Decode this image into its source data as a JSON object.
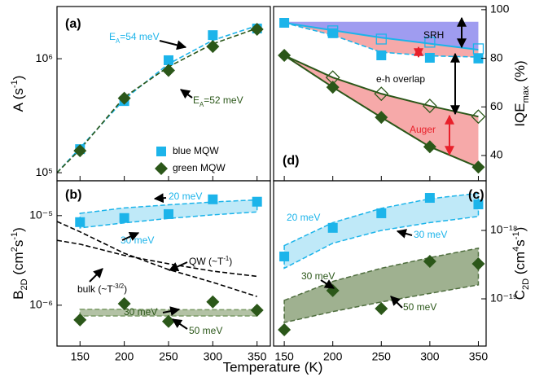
{
  "chart_data": [
    {
      "type": "scatter",
      "label": "(a)",
      "yaxis": "left",
      "yscale": "log",
      "ylabel": [
        {
          "text": "A (s"
        },
        {
          "text": "-1",
          "shift": "super"
        },
        {
          "text": ")"
        }
      ],
      "xlim": [
        124,
        365
      ],
      "ylim": [
        85000,
        2870000
      ],
      "xticks": [
        150,
        200,
        250,
        300,
        350
      ],
      "xtick_labels": false,
      "yticks": [
        {
          "value": 100000,
          "label": "10⁵"
        },
        {
          "value": 1000000,
          "label": "10⁶"
        }
      ],
      "x": [
        150,
        200,
        250,
        300,
        350
      ],
      "series": [
        {
          "name": "blue MQW",
          "color": "#1cb4ea",
          "marker": "square",
          "filled": true,
          "values": [
            161000,
            425000,
            970000,
            1610000,
            1840000
          ]
        },
        {
          "name": "green MQW",
          "color": "#2b5719",
          "marker": "diamond",
          "filled": true,
          "values": [
            156000,
            450000,
            790000,
            1280000,
            1810000
          ]
        }
      ],
      "fits": [
        {
          "color": "#1cb4ea",
          "style": "dashed",
          "x": [
            124,
            150,
            200,
            250,
            300,
            350
          ],
          "values": [
            100000,
            165000,
            440000,
            900000,
            1450000,
            1950000
          ]
        },
        {
          "color": "#2b5719",
          "style": "dashed",
          "x": [
            124,
            150,
            200,
            250,
            300,
            350
          ],
          "values": [
            100000,
            160000,
            460000,
            850000,
            1350000,
            1850000
          ]
        }
      ],
      "annotations": [
        {
          "color": "#1cb4ea",
          "parts": [
            {
              "text": "E"
            },
            {
              "text": "A",
              "shift": "sub"
            },
            {
              "text": "=54 meV"
            }
          ]
        },
        {
          "color": "#2b5719",
          "parts": [
            {
              "text": "E"
            },
            {
              "text": "A",
              "shift": "sub"
            },
            {
              "text": "=52 meV"
            }
          ]
        }
      ],
      "legend": "lower right"
    },
    {
      "type": "scatter",
      "label": "(b)",
      "yaxis": "left",
      "yscale": "log",
      "ylabel": [
        {
          "text": "B"
        },
        {
          "text": "2D",
          "shift": "sub"
        },
        {
          "text": " (cm"
        },
        {
          "text": "2",
          "shift": "super"
        },
        {
          "text": "s"
        },
        {
          "text": "-1",
          "shift": "super"
        },
        {
          "text": ")"
        }
      ],
      "xlim": [
        124,
        365
      ],
      "ylim": [
        3.5e-07,
        2.45e-05
      ],
      "xticks": [
        150,
        200,
        250,
        300,
        350
      ],
      "yticks": [
        {
          "value": 1e-06,
          "label": "10⁻⁶"
        },
        {
          "value": 1e-05,
          "label": "10⁻⁵"
        }
      ],
      "x": [
        150,
        200,
        250,
        300,
        350
      ],
      "bands": [
        {
          "color": "#bfe9f8",
          "edge": "#1cb4ea",
          "upper": [
            1.06e-05,
            1.22e-05,
            1.32e-05,
            1.42e-05,
            1.5e-05
          ],
          "lower": [
            7.3e-06,
            8.3e-06,
            9.3e-06,
            1.02e-05,
            1.1e-05
          ]
        },
        {
          "color": "#b3c2a5",
          "edge": "#7a9a66",
          "upper": [
            9e-07,
            9e-07,
            8.9e-07,
            8.9e-07,
            8.9e-07
          ],
          "lower": [
            7.6e-07,
            7.6e-07,
            7.6e-07,
            7.6e-07,
            7.6e-07
          ]
        }
      ],
      "fits": [
        {
          "color": "#000000",
          "style": "dashed",
          "x": [
            124,
            150,
            200,
            250,
            300,
            350
          ],
          "values": [
            5.3e-06,
            4.8e-06,
            3.6e-06,
            2.9e-06,
            2.4e-06,
            2.1e-06
          ]
        },
        {
          "color": "#000000",
          "style": "dashed",
          "x": [
            124,
            150,
            200,
            250,
            300,
            350
          ],
          "values": [
            8.6e-06,
            6.6e-06,
            3.8e-06,
            2.5e-06,
            1.8e-06,
            1.25e-06
          ]
        }
      ],
      "series": [
        {
          "color": "#1cb4ea",
          "marker": "square",
          "filled": true,
          "values": [
            8.46e-06,
            9.4e-06,
            1.04e-05,
            1.52e-05,
            1.43e-05
          ]
        },
        {
          "color": "#2b5719",
          "marker": "diamond",
          "filled": true,
          "values": [
            6.86e-07,
            1.04e-06,
            6.6e-07,
            1.09e-06,
            8.8e-07
          ]
        }
      ],
      "annotations": [
        {
          "color": "#1cb4ea",
          "parts": [
            {
              "text": "20 meV"
            }
          ]
        },
        {
          "color": "#1cb4ea",
          "parts": [
            {
              "text": "30 meV"
            }
          ]
        },
        {
          "color": "#000000",
          "parts": [
            {
              "text": "QW (~T"
            },
            {
              "text": "-1",
              "shift": "super"
            },
            {
              "text": ")"
            }
          ]
        },
        {
          "color": "#000000",
          "parts": [
            {
              "text": "bulk (~T"
            },
            {
              "text": "-3/2",
              "shift": "super"
            },
            {
              "text": ")"
            }
          ]
        },
        {
          "color": "#2b5719",
          "parts": [
            {
              "text": "30 meV"
            }
          ]
        },
        {
          "color": "#2b5719",
          "parts": [
            {
              "text": "50 meV"
            }
          ]
        }
      ]
    },
    {
      "type": "scatter",
      "label": "(c)",
      "yaxis": "right",
      "yscale": "log",
      "ylabel": [
        {
          "text": "C"
        },
        {
          "text": "2D",
          "shift": "sub"
        },
        {
          "text": " (cm"
        },
        {
          "text": "4",
          "shift": "super"
        },
        {
          "text": "s"
        },
        {
          "text": "-1",
          "shift": "super"
        },
        {
          "text": ")"
        }
      ],
      "xlim": [
        139,
        358
      ],
      "ylim": [
        2.04e-20,
        5.32e-18
      ],
      "xticks": [
        150,
        200,
        250,
        300,
        350
      ],
      "yticks": [
        {
          "value": 1e-19,
          "label": "10⁻¹⁹"
        },
        {
          "value": 1e-18,
          "label": "10⁻¹⁸"
        }
      ],
      "x": [
        150,
        200,
        250,
        300,
        350
      ],
      "bands": [
        {
          "color": "#bfe9f8",
          "edge": "#1cb4ea",
          "upper": [
            6e-19,
            1.3e-18,
            2.1e-18,
            2.9e-18,
            3.5e-18
          ],
          "lower": [
            2.8e-19,
            6.5e-19,
            1e-18,
            1.3e-18,
            1.6e-18
          ]
        },
        {
          "color": "#9fb190",
          "edge": "#4f6e3e",
          "upper": [
            9.5e-20,
            1.8e-19,
            2.8e-19,
            4e-19,
            5.5e-19
          ],
          "lower": [
            4.5e-20,
            6.5e-20,
            9e-20,
            1.2e-19,
            1.6e-19
          ]
        }
      ],
      "series": [
        {
          "color": "#1cb4ea",
          "marker": "square",
          "filled": true,
          "values": [
            4.16e-19,
            1.09e-18,
            1.78e-18,
            2.99e-18,
            2.4e-18
          ]
        },
        {
          "color": "#2b5719",
          "marker": "diamond",
          "filled": true,
          "values": [
            3.53e-20,
            1.32e-19,
            7.2e-20,
            3.53e-19,
            3.25e-19
          ]
        }
      ],
      "annotations": [
        {
          "color": "#1cb4ea",
          "parts": [
            {
              "text": "20 meV"
            }
          ]
        },
        {
          "color": "#1cb4ea",
          "parts": [
            {
              "text": "30 meV"
            }
          ]
        },
        {
          "color": "#2b5719",
          "parts": [
            {
              "text": "30 meV"
            }
          ]
        },
        {
          "color": "#2b5719",
          "parts": [
            {
              "text": "50 meV"
            }
          ]
        }
      ]
    },
    {
      "type": "scatter",
      "label": "(d)",
      "yaxis": "right",
      "yscale": "linear",
      "ylabel": [
        {
          "text": "IQE"
        },
        {
          "text": "max",
          "shift": "sub"
        },
        {
          "text": " (%)"
        }
      ],
      "xlim": [
        139,
        358
      ],
      "ylim": [
        29.6,
        101.3
      ],
      "xticks": [
        150,
        200,
        250,
        300,
        350
      ],
      "xtick_labels": false,
      "yticks": [
        40,
        60,
        80,
        100
      ],
      "x": [
        150,
        200,
        250,
        300,
        350
      ],
      "bands": [
        {
          "color": "#9f9cf0",
          "edge": "none",
          "upper": [
            95,
            95,
            95,
            95,
            95
          ],
          "lower": [
            94.6,
            91.5,
            88.5,
            86,
            83.5
          ]
        },
        {
          "color": "#f6a9a9",
          "edge": "none",
          "upper": [
            94.6,
            91.5,
            88.5,
            86,
            83.5
          ],
          "lower": [
            94.6,
            89.5,
            82.5,
            81,
            80.5
          ]
        },
        {
          "color": "#f6a9a9",
          "edge": "none",
          "upper": [
            81.2,
            72.1,
            65.4,
            60.4,
            56
          ],
          "lower": [
            81.2,
            68.1,
            55.7,
            43.6,
            35.2
          ]
        }
      ],
      "fits": [
        {
          "color": "#1cb4ea",
          "style": "solid",
          "values": [
            94.6,
            91.5,
            88.5,
            86,
            83.5
          ]
        },
        {
          "color": "#1cb4ea",
          "style": "dashed",
          "values": [
            94.6,
            89.5,
            82.5,
            81,
            80.5
          ]
        },
        {
          "color": "#2b5719",
          "style": "solid",
          "values": [
            81.2,
            72.1,
            65.4,
            60.4,
            56
          ]
        },
        {
          "color": "#2b5719",
          "style": "solid",
          "values": [
            81.2,
            68.1,
            55.7,
            43.6,
            35.2
          ]
        }
      ],
      "series": [
        {
          "color": "#1cb4ea",
          "marker": "square",
          "filled": true,
          "values": [
            94.6,
            90.3,
            81.2,
            80.2,
            79.9
          ]
        },
        {
          "color": "#1cb4ea",
          "marker": "square",
          "filled": false,
          "x": [
            200,
            250,
            300,
            350
          ],
          "values": [
            91.3,
            87.9,
            86.6,
            83.9
          ]
        },
        {
          "color": "#2b5719",
          "marker": "diamond",
          "filled": true,
          "values": [
            81.2,
            68.1,
            55.7,
            43.6,
            35.2
          ]
        },
        {
          "color": "#2b5719",
          "marker": "diamond",
          "filled": false,
          "x": [
            200,
            250,
            300,
            350
          ],
          "values": [
            72.1,
            65.4,
            60.4,
            56
          ]
        }
      ],
      "annotations": [
        {
          "color": "#000000",
          "parts": [
            {
              "text": "SRH"
            }
          ]
        },
        {
          "color": "#000000",
          "parts": [
            {
              "text": "e-h overlap"
            }
          ]
        },
        {
          "color": "#e8202a",
          "parts": [
            {
              "text": "Auger"
            }
          ]
        }
      ]
    }
  ],
  "shared_xlabel": "Temperature (K)"
}
